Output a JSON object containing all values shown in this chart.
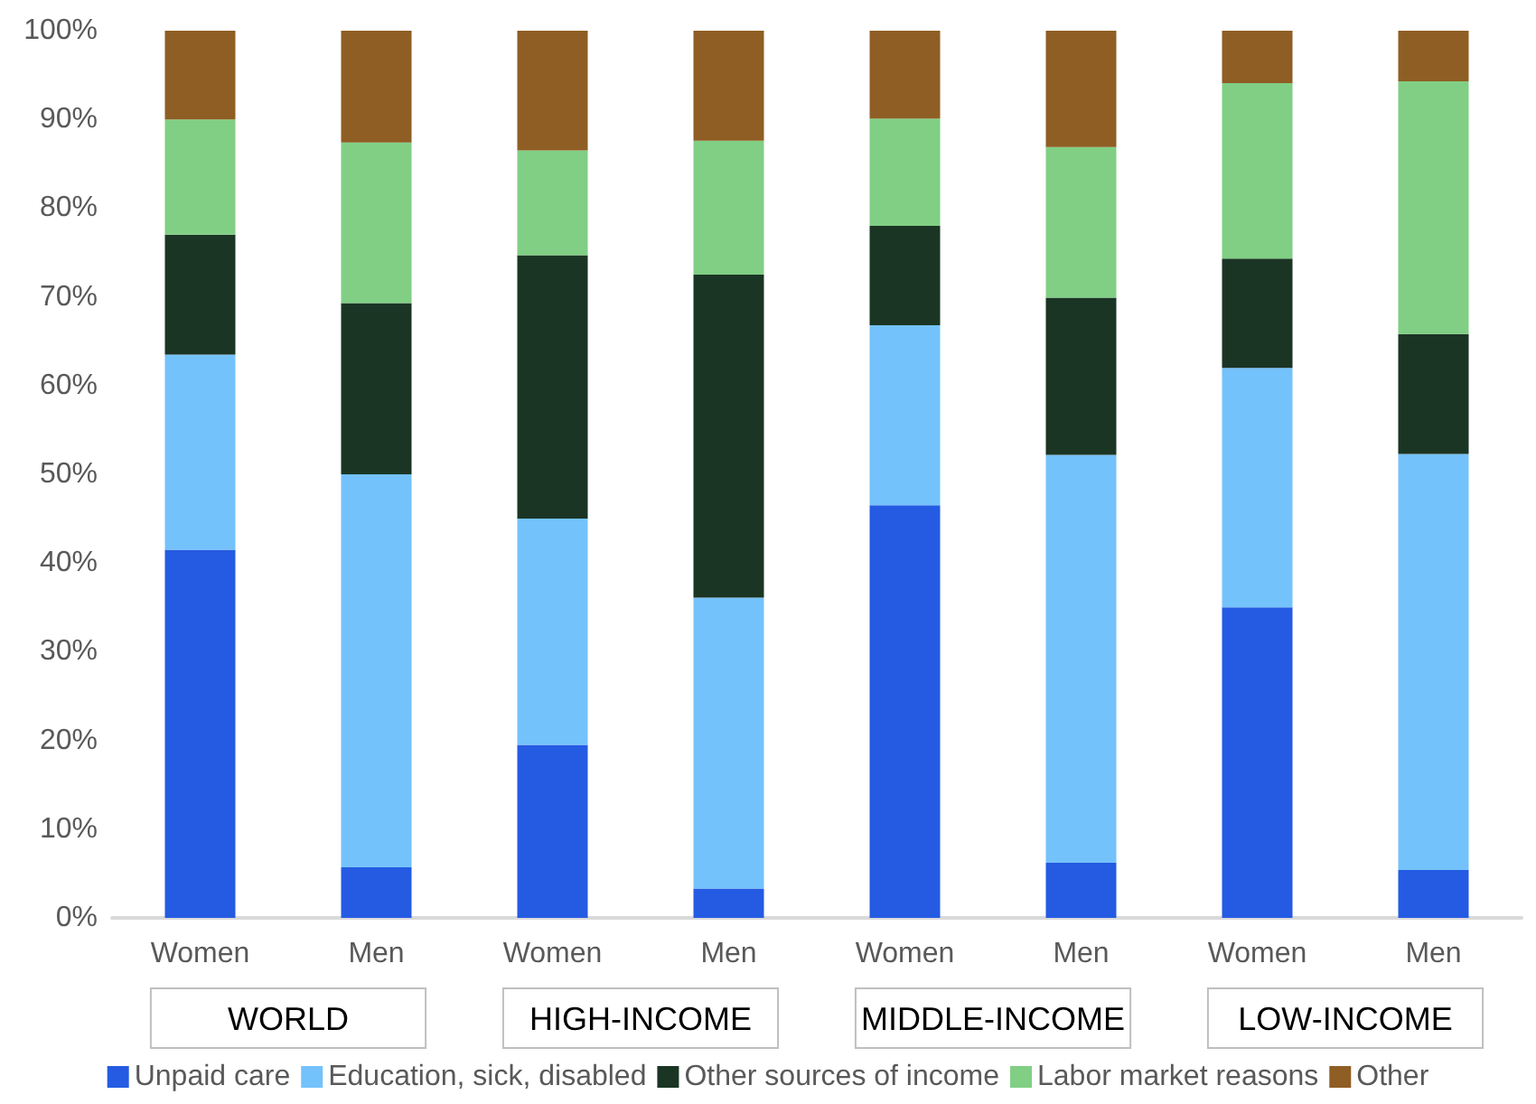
{
  "chart_data": {
    "type": "bar",
    "stacked": true,
    "categories": [
      "Women",
      "Men",
      "Women",
      "Men",
      "Women",
      "Men",
      "Women",
      "Men"
    ],
    "series": [
      {
        "name": "Unpaid care",
        "color": "#245be2",
        "values": [
          41.5,
          5.7,
          19.5,
          3.3,
          46.5,
          6.2,
          35,
          5.4
        ]
      },
      {
        "name": "Education, sick, disabled",
        "color": "#74c2fb",
        "values": [
          22,
          44.3,
          25.5,
          32.8,
          20.3,
          46,
          27,
          46.9
        ]
      },
      {
        "name": "Other sources of income",
        "color": "#1b3524",
        "values": [
          13.5,
          19.3,
          29.7,
          36.4,
          11.2,
          17.7,
          12.3,
          13.5
        ]
      },
      {
        "name": "Labor market reasons",
        "color": "#80cf84",
        "values": [
          13,
          18.1,
          11.8,
          15.1,
          12.1,
          17,
          19.8,
          28.5
        ]
      },
      {
        "name": "Other",
        "color": "#8f5e24",
        "values": [
          10,
          12.6,
          13.5,
          12.4,
          9.9,
          13.1,
          5.9,
          5.7
        ]
      }
    ],
    "ylim": [
      0,
      100
    ],
    "yticks": [
      {
        "value": 0,
        "label": "0%"
      },
      {
        "value": 10,
        "label": "10%"
      },
      {
        "value": 20,
        "label": "20%"
      },
      {
        "value": 30,
        "label": "30%"
      },
      {
        "value": 40,
        "label": "40%"
      },
      {
        "value": 50,
        "label": "50%"
      },
      {
        "value": 60,
        "label": "60%"
      },
      {
        "value": 70,
        "label": "70%"
      },
      {
        "value": 80,
        "label": "80%"
      },
      {
        "value": 90,
        "label": "90%"
      },
      {
        "value": 100,
        "label": "100%"
      }
    ],
    "grid": false,
    "legend": "bottom",
    "annotations": [
      "WORLD",
      "HIGH-INCOME",
      "MIDDLE-INCOME",
      "LOW-INCOME"
    ]
  }
}
